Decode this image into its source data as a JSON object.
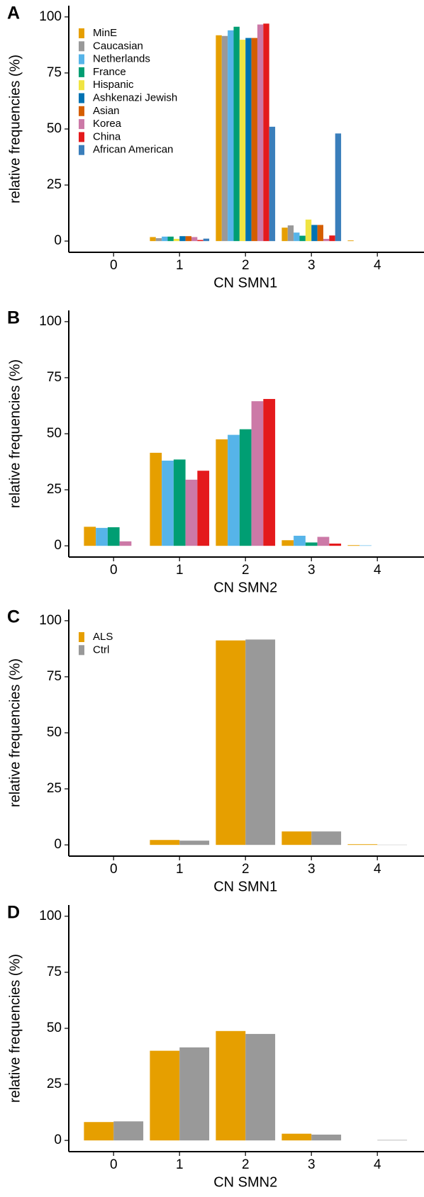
{
  "chart_data": [
    {
      "type": "bar",
      "panel_label": "A",
      "xlabel": "CN SMN1",
      "ylabel": "relative frequencies (%)",
      "categories": [
        "0",
        "1",
        "2",
        "3",
        "4"
      ],
      "ylim": [
        -5,
        105
      ],
      "yticks": [
        0,
        25,
        50,
        75,
        100
      ],
      "legend": "top-left",
      "series": [
        {
          "name": "MinE",
          "color": "#E69F00",
          "values": [
            0,
            1.8,
            91.8,
            6,
            0.3
          ]
        },
        {
          "name": "Caucasian",
          "color": "#999999",
          "values": [
            0,
            1.3,
            91.5,
            7,
            0
          ]
        },
        {
          "name": "Netherlands",
          "color": "#56B4E9",
          "values": [
            0,
            2,
            94,
            3.8,
            0
          ]
        },
        {
          "name": "France",
          "color": "#009E73",
          "values": [
            0,
            2,
            95.6,
            2.4,
            0
          ]
        },
        {
          "name": "Hispanic",
          "color": "#F0E442",
          "values": [
            0,
            1,
            89.8,
            9.6,
            0
          ]
        },
        {
          "name": "Ashkenazi Jewish",
          "color": "#0072B2",
          "values": [
            0,
            2.2,
            90.6,
            7.2,
            0
          ]
        },
        {
          "name": "Asian",
          "color": "#D55E00",
          "values": [
            0,
            2.2,
            90.6,
            7.2,
            0
          ]
        },
        {
          "name": "Korea",
          "color": "#CC79A7",
          "values": [
            0,
            1.8,
            96.6,
            1,
            0
          ]
        },
        {
          "name": "China",
          "color": "#E41A1C",
          "values": [
            0,
            0.5,
            97,
            2.5,
            0
          ]
        },
        {
          "name": "African American",
          "color": "#3A7EBB",
          "values": [
            0,
            1.1,
            51,
            48,
            0
          ]
        }
      ]
    },
    {
      "type": "bar",
      "panel_label": "B",
      "xlabel": "CN SMN2",
      "ylabel": "relative frequencies (%)",
      "categories": [
        "0",
        "1",
        "2",
        "3",
        "4"
      ],
      "ylim": [
        -5,
        105
      ],
      "yticks": [
        0,
        25,
        50,
        75,
        100
      ],
      "series": [
        {
          "color": "#E69F00",
          "values": [
            8.5,
            41.5,
            47.5,
            2.5,
            0.3
          ]
        },
        {
          "color": "#56B4E9",
          "values": [
            8,
            38,
            49.5,
            4.5,
            0.2
          ]
        },
        {
          "color": "#009E73",
          "values": [
            8.3,
            38.5,
            52,
            1.5,
            0
          ]
        },
        {
          "color": "#CC79A7",
          "values": [
            2,
            29.5,
            64.5,
            4,
            0
          ]
        },
        {
          "color": "#E41A1C",
          "values": [
            0,
            33.5,
            65.5,
            1,
            0
          ]
        }
      ]
    },
    {
      "type": "bar",
      "panel_label": "C",
      "xlabel": "CN SMN1",
      "ylabel": "relative frequencies (%)",
      "categories": [
        "0",
        "1",
        "2",
        "3",
        "4"
      ],
      "ylim": [
        -5,
        105
      ],
      "yticks": [
        0,
        25,
        50,
        75,
        100
      ],
      "legend": "top-left",
      "series": [
        {
          "name": "ALS",
          "color": "#E69F00",
          "values": [
            0,
            2.2,
            91.2,
            6,
            0.3
          ]
        },
        {
          "name": "Ctrl",
          "color": "#999999",
          "values": [
            0,
            1.9,
            91.6,
            6,
            0.1
          ]
        }
      ]
    },
    {
      "type": "bar",
      "panel_label": "D",
      "xlabel": "CN SMN2",
      "ylabel": "relative frequencies (%)",
      "categories": [
        "0",
        "1",
        "2",
        "3",
        "4"
      ],
      "ylim": [
        -5,
        105
      ],
      "yticks": [
        0,
        25,
        50,
        75,
        100
      ],
      "series": [
        {
          "color": "#E69F00",
          "values": [
            8.2,
            40,
            48.8,
            3,
            0
          ]
        },
        {
          "color": "#999999",
          "values": [
            8.5,
            41.5,
            47.5,
            2.6,
            0.2
          ]
        }
      ]
    }
  ]
}
